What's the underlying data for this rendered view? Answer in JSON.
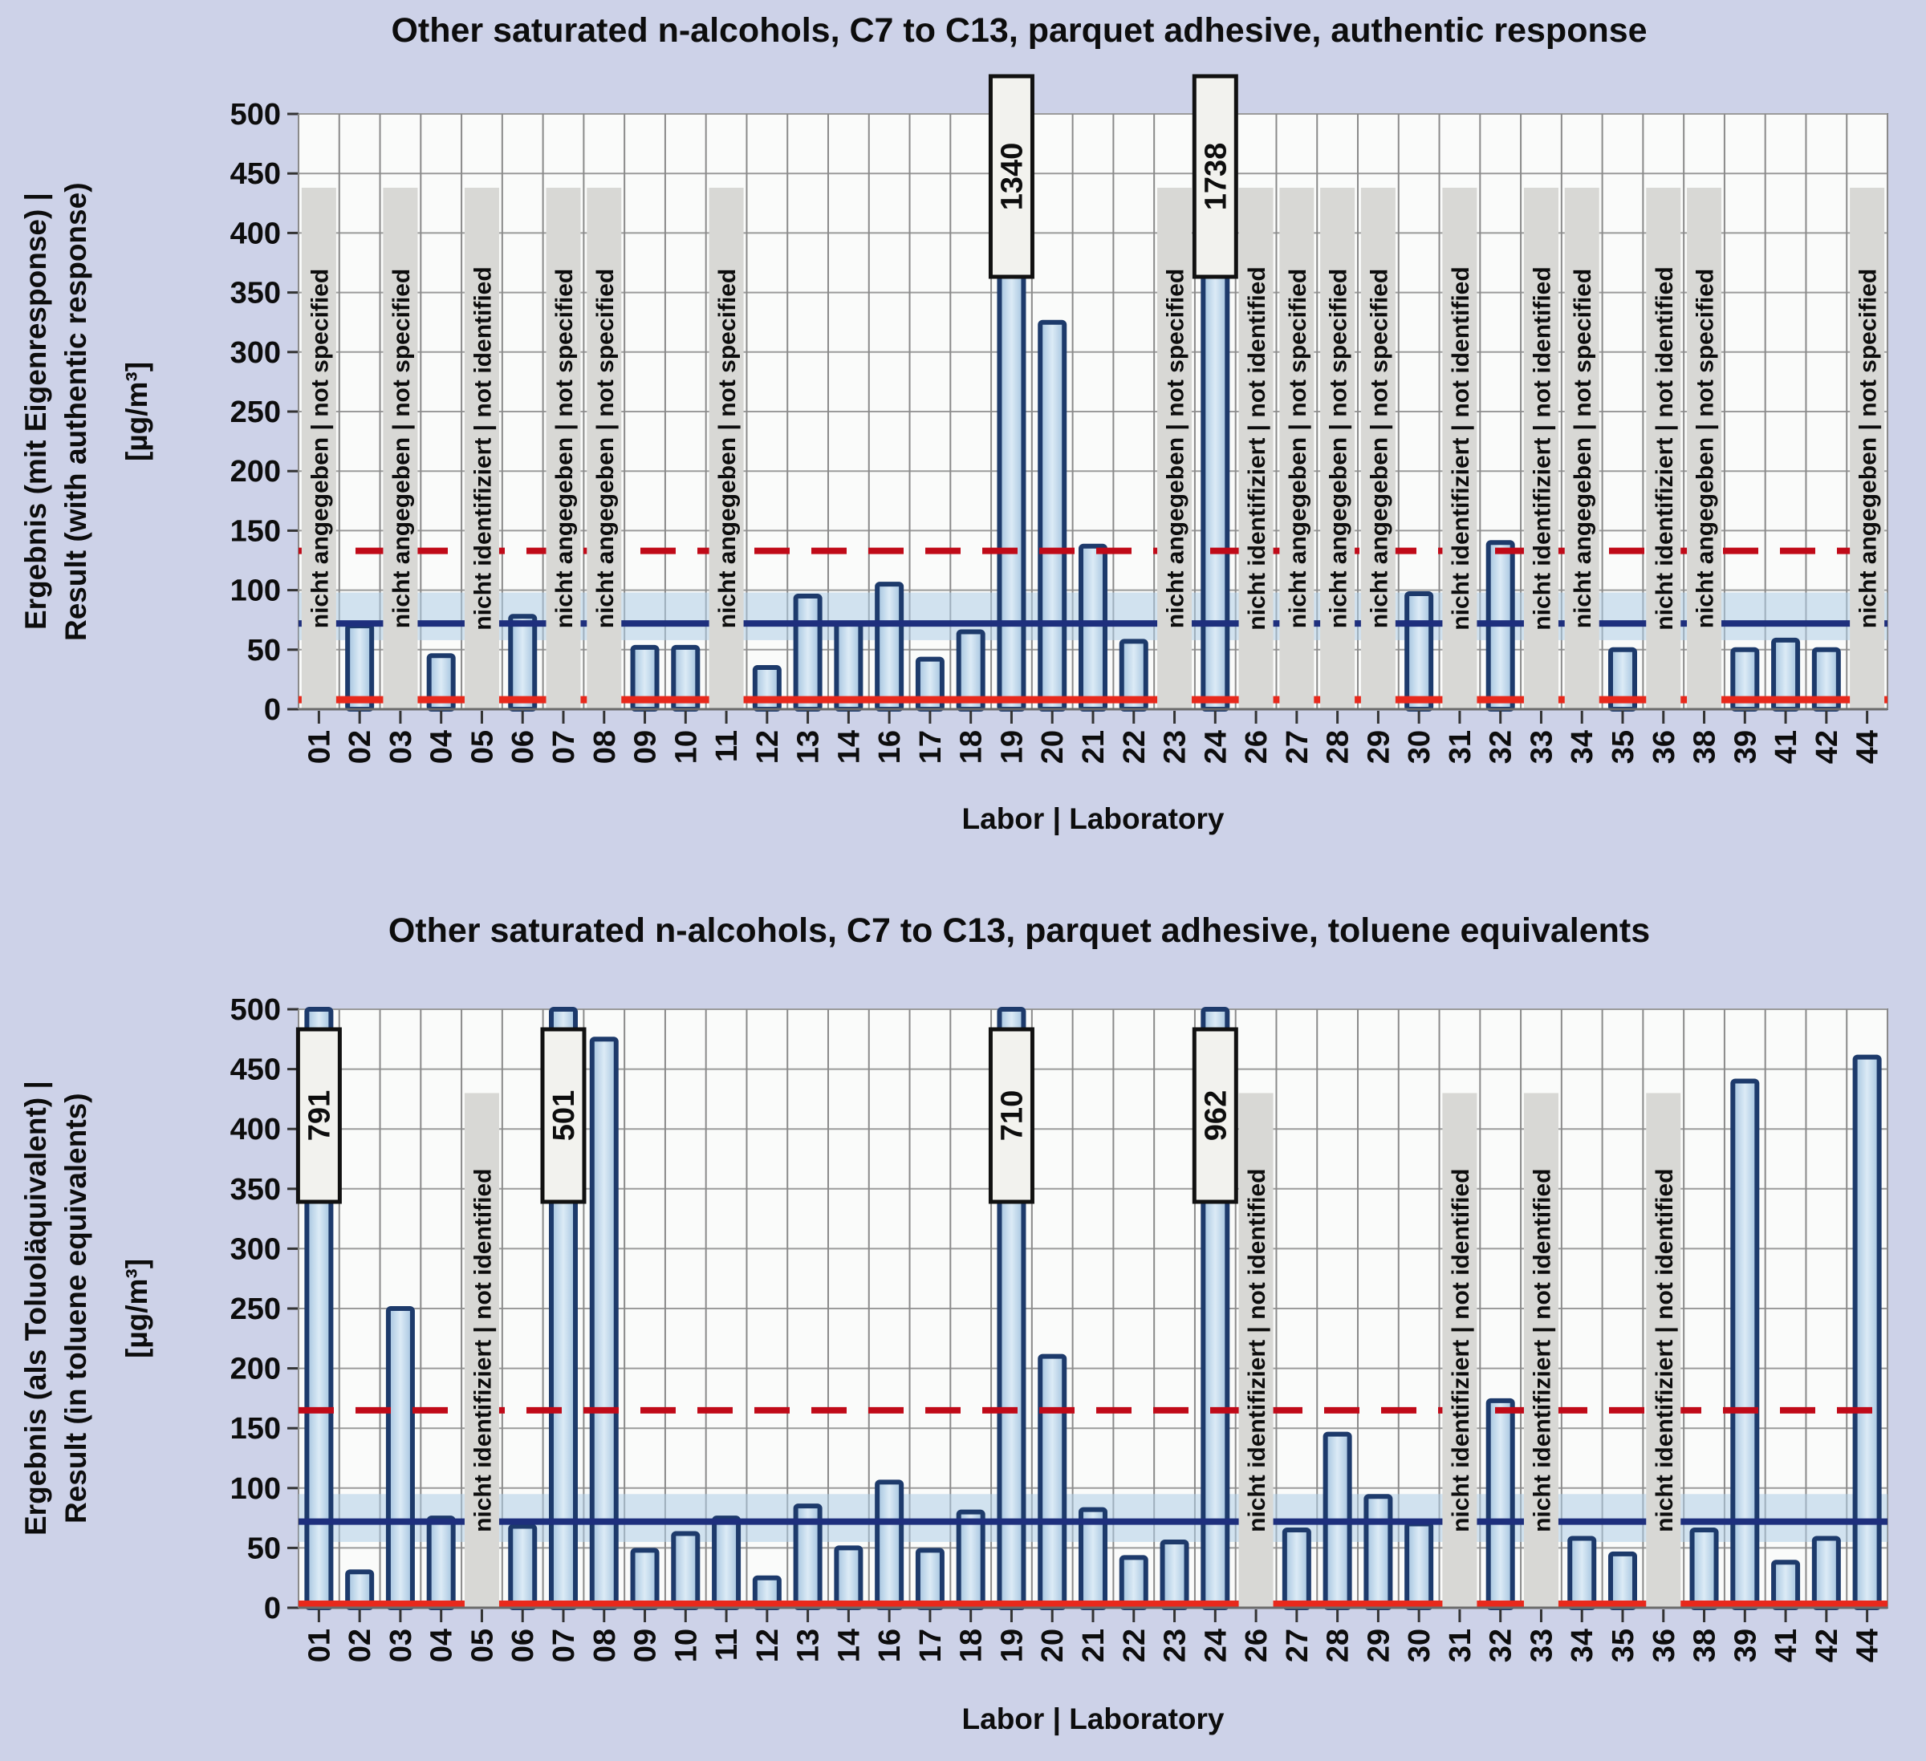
{
  "page": {
    "background": "#cdd2e8"
  },
  "labels": {
    "not_specified": "nicht angegeben | not specified",
    "not_identified": "nicht identifiziert | not identified"
  },
  "colors": {
    "page_bg": "#cdd2e8",
    "plot_bg": "#fafbfa",
    "grid_h": "#9b9b9b",
    "grid_v": "#8a8a8a",
    "axis": "#6b6b6b",
    "bar_stroke": "#1d3a6b",
    "bar_fill_edge": "#a2c2de",
    "bar_fill_center": "#dcebf6",
    "band": "#aecde6",
    "blue_line": "#1e2f7d",
    "red_dashed": "#c00a18",
    "red_solid": "#e8291c",
    "gray_column": "#d8d8d5",
    "callout_bg": "#f2f2ee",
    "callout_border": "#111111",
    "text": "#0d0d0d"
  },
  "chart_data": [
    {
      "type": "bar",
      "title": "Other saturated n-alcohols, C7 to C13, parquet adhesive, authentic response",
      "ylabel_line1": "Ergebnis (mit Eigenresponse) |",
      "ylabel_line2": "Result (with authentic response)",
      "y_unit": "[µg/m³]",
      "xlabel": "Labor | Laboratory",
      "ylim": [
        0,
        500
      ],
      "yticks": [
        0,
        50,
        100,
        150,
        200,
        250,
        300,
        350,
        400,
        450,
        500
      ],
      "grid": true,
      "categories": [
        "01",
        "02",
        "03",
        "04",
        "05",
        "06",
        "07",
        "08",
        "09",
        "10",
        "11",
        "12",
        "13",
        "14",
        "16",
        "17",
        "18",
        "19",
        "20",
        "21",
        "22",
        "23",
        "24",
        "26",
        "27",
        "28",
        "29",
        "30",
        "31",
        "32",
        "33",
        "34",
        "35",
        "36",
        "38",
        "39",
        "41",
        "42",
        "44"
      ],
      "values": [
        null,
        70,
        null,
        45,
        null,
        78,
        null,
        null,
        52,
        52,
        null,
        35,
        95,
        72,
        105,
        42,
        65,
        1340,
        325,
        137,
        57,
        null,
        1738,
        null,
        null,
        null,
        null,
        97,
        null,
        140,
        null,
        null,
        50,
        null,
        null,
        50,
        58,
        50,
        null
      ],
      "status": [
        "not_specified",
        null,
        "not_specified",
        null,
        "not_identified",
        null,
        "not_specified",
        "not_specified",
        null,
        null,
        "not_specified",
        null,
        null,
        null,
        null,
        null,
        null,
        null,
        null,
        null,
        null,
        "not_specified",
        null,
        "not_identified",
        "not_specified",
        "not_specified",
        "not_specified",
        null,
        "not_identified",
        null,
        "not_identified",
        "not_specified",
        null,
        "not_identified",
        "not_specified",
        null,
        null,
        null,
        "not_specified"
      ],
      "callout_values": [
        1340,
        1738
      ],
      "reference_lines": {
        "red_dashed": 133,
        "blue_solid": 72,
        "band_low": 58,
        "band_high": 98,
        "red_solid": 8
      }
    },
    {
      "type": "bar",
      "title": "Other saturated n-alcohols, C7 to C13, parquet adhesive, toluene equivalents",
      "ylabel_line1": "Ergebnis (als Toluoläquivalent) |",
      "ylabel_line2": "Result (in toluene equivalents)",
      "y_unit": "[µg/m³]",
      "xlabel": "Labor | Laboratory",
      "ylim": [
        0,
        500
      ],
      "yticks": [
        0,
        50,
        100,
        150,
        200,
        250,
        300,
        350,
        400,
        450,
        500
      ],
      "grid": true,
      "categories": [
        "01",
        "02",
        "03",
        "04",
        "05",
        "06",
        "07",
        "08",
        "09",
        "10",
        "11",
        "12",
        "13",
        "14",
        "16",
        "17",
        "18",
        "19",
        "20",
        "21",
        "22",
        "23",
        "24",
        "26",
        "27",
        "28",
        "29",
        "30",
        "31",
        "32",
        "33",
        "34",
        "35",
        "36",
        "38",
        "39",
        "41",
        "42",
        "44"
      ],
      "values": [
        791,
        30,
        250,
        75,
        null,
        68,
        501,
        475,
        48,
        62,
        75,
        25,
        85,
        50,
        105,
        48,
        80,
        710,
        210,
        82,
        42,
        55,
        962,
        null,
        65,
        145,
        93,
        70,
        null,
        173,
        null,
        58,
        45,
        null,
        65,
        440,
        38,
        58,
        460
      ],
      "status": [
        null,
        null,
        null,
        null,
        "not_identified",
        null,
        null,
        null,
        null,
        null,
        null,
        null,
        null,
        null,
        null,
        null,
        null,
        null,
        null,
        null,
        null,
        null,
        null,
        "not_identified",
        null,
        null,
        null,
        null,
        "not_identified",
        null,
        "not_identified",
        null,
        null,
        "not_identified",
        null,
        null,
        null,
        null,
        null
      ],
      "callout_values": [
        791,
        501,
        710,
        962
      ],
      "reference_lines": {
        "red_dashed": 165,
        "blue_solid": 72,
        "band_low": 55,
        "band_high": 95,
        "red_solid": 3
      }
    }
  ]
}
